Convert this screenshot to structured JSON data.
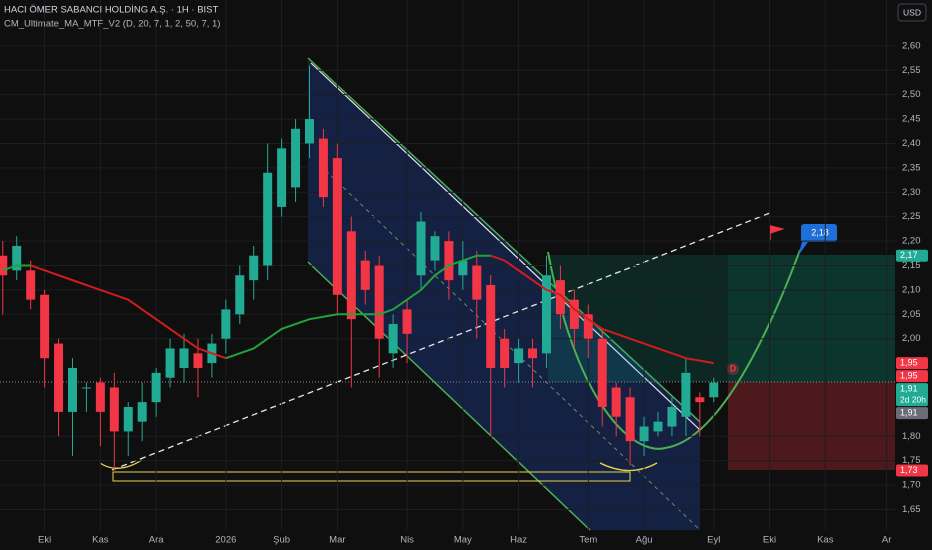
{
  "chart_data": {
    "type": "candlestick",
    "title": "HACI ÖMER SABANCI HOLDİNG A.Ş. · 1H · BIST",
    "indicator": "CM_Ultimate_MA_MTF_V2 (D, 20, 7, 1, 2, 50, 7, 1)",
    "currency": "USD",
    "up_color": "#22ab94",
    "down_color": "#f23645",
    "x": [
      0,
      1,
      2,
      3,
      4,
      5,
      6,
      7,
      8,
      9,
      10,
      11,
      12,
      13,
      14,
      15,
      16,
      17,
      18,
      19,
      20,
      21,
      22,
      23,
      24,
      25,
      26,
      27,
      28,
      29,
      30,
      31,
      32,
      33,
      34,
      35,
      36,
      37,
      38,
      39,
      40,
      41,
      42,
      43,
      44,
      45,
      46,
      47,
      48,
      49,
      50,
      51
    ],
    "open": [
      2.17,
      2.14,
      2.14,
      2.09,
      1.99,
      1.85,
      1.9,
      1.91,
      1.9,
      1.81,
      1.83,
      1.87,
      1.92,
      1.94,
      1.97,
      1.95,
      2.0,
      2.05,
      2.12,
      2.15,
      2.27,
      2.31,
      2.4,
      2.41,
      2.37,
      2.22,
      2.16,
      2.15,
      1.97,
      2.06,
      2.13,
      2.16,
      2.2,
      2.13,
      2.15,
      2.11,
      2.0,
      1.95,
      1.98,
      1.97,
      2.12,
      2.08,
      2.05,
      2.0,
      1.9,
      1.88,
      1.79,
      1.81,
      1.82,
      1.84,
      1.88,
      1.88
    ],
    "high": [
      2.2,
      2.21,
      2.16,
      2.1,
      2.0,
      1.96,
      1.91,
      1.92,
      1.93,
      1.87,
      1.91,
      1.94,
      2.0,
      2.01,
      2.0,
      2.01,
      2.08,
      2.15,
      2.19,
      2.4,
      2.41,
      2.45,
      2.56,
      2.43,
      2.4,
      2.25,
      2.18,
      2.17,
      2.05,
      2.08,
      2.26,
      2.22,
      2.22,
      2.2,
      2.18,
      2.13,
      2.02,
      2.0,
      2.0,
      2.17,
      2.15,
      2.1,
      2.07,
      2.02,
      1.91,
      1.9,
      1.84,
      1.85,
      1.88,
      1.96,
      1.89,
      1.92
    ],
    "low": [
      2.05,
      2.12,
      2.06,
      1.9,
      1.8,
      1.76,
      1.85,
      1.78,
      1.73,
      1.76,
      1.79,
      1.84,
      1.9,
      1.91,
      1.88,
      1.92,
      1.97,
      2.03,
      2.08,
      2.12,
      2.25,
      2.28,
      2.37,
      2.27,
      2.05,
      1.9,
      2.07,
      1.92,
      1.94,
      1.95,
      2.1,
      2.14,
      2.08,
      2.1,
      2.0,
      1.8,
      1.9,
      1.91,
      1.9,
      1.94,
      2.02,
      1.98,
      1.96,
      1.82,
      1.8,
      1.74,
      1.76,
      1.8,
      1.8,
      1.8,
      1.8,
      1.87
    ],
    "close": [
      2.13,
      2.19,
      2.08,
      1.96,
      1.85,
      1.94,
      1.9,
      1.85,
      1.81,
      1.86,
      1.87,
      1.93,
      1.98,
      1.98,
      1.94,
      1.99,
      2.06,
      2.13,
      2.17,
      2.34,
      2.39,
      2.43,
      2.45,
      2.29,
      2.09,
      2.04,
      2.1,
      2.0,
      2.03,
      2.01,
      2.24,
      2.21,
      2.12,
      2.16,
      2.08,
      1.94,
      1.94,
      1.98,
      1.96,
      2.13,
      2.05,
      2.02,
      2.0,
      1.86,
      1.84,
      1.79,
      1.82,
      1.83,
      1.86,
      1.93,
      1.87,
      1.91
    ],
    "ma": [
      2.14,
      2.15,
      2.15,
      2.14,
      2.13,
      2.12,
      2.11,
      2.1,
      2.09,
      2.08,
      2.06,
      2.04,
      2.02,
      2.0,
      1.98,
      1.97,
      1.96,
      1.97,
      1.98,
      2.0,
      2.02,
      2.03,
      2.04,
      2.045,
      2.05,
      2.05,
      2.05,
      2.05,
      2.06,
      2.08,
      2.1,
      2.13,
      2.15,
      2.16,
      2.17,
      2.17,
      2.16,
      2.14,
      2.12,
      2.1,
      2.09,
      2.06,
      2.04,
      2.02,
      2.01,
      2.0,
      1.99,
      1.98,
      1.97,
      1.96,
      1.955,
      1.95
    ],
    "ma_up_color": "#22a33a",
    "ma_down_color": "#d01c1c",
    "xlim": [
      -0.2,
      64
    ],
    "xticks": [
      {
        "value": 3,
        "label": "Eki"
      },
      {
        "value": 7,
        "label": "Kas"
      },
      {
        "value": 11,
        "label": "Ara"
      },
      {
        "value": 16,
        "label": "2026"
      },
      {
        "value": 20,
        "label": "Şub"
      },
      {
        "value": 24,
        "label": "Mar"
      },
      {
        "value": 29,
        "label": "Nis"
      },
      {
        "value": 33,
        "label": "May"
      },
      {
        "value": 37,
        "label": "Haz"
      },
      {
        "value": 42,
        "label": "Tem"
      },
      {
        "value": 46,
        "label": "Ağu"
      },
      {
        "value": 51,
        "label": "Eyl"
      },
      {
        "value": 55,
        "label": "Eki"
      },
      {
        "value": 59,
        "label": "Kas"
      },
      {
        "value": 63.4,
        "label": "Ar"
      }
    ],
    "ylim": [
      1.608,
      2.694
    ],
    "yticks": [
      {
        "value": 2.6,
        "label": "2,60"
      },
      {
        "value": 2.55,
        "label": "2,55"
      },
      {
        "value": 2.5,
        "label": "2,50"
      },
      {
        "value": 2.45,
        "label": "2,45"
      },
      {
        "value": 2.4,
        "label": "2,40"
      },
      {
        "value": 2.35,
        "label": "2,35"
      },
      {
        "value": 2.3,
        "label": "2,30"
      },
      {
        "value": 2.25,
        "label": "2,25"
      },
      {
        "value": 2.2,
        "label": "2,20"
      },
      {
        "value": 2.15,
        "label": "2,15"
      },
      {
        "value": 2.1,
        "label": "2,10"
      },
      {
        "value": 2.05,
        "label": "2,05"
      },
      {
        "value": 2.0,
        "label": "2,00"
      },
      {
        "value": 1.8,
        "label": "1,80"
      },
      {
        "value": 1.75,
        "label": "1,75"
      },
      {
        "value": 1.7,
        "label": "1,70"
      },
      {
        "value": 1.65,
        "label": "1,65"
      }
    ],
    "badges": [
      {
        "value": 2.17,
        "label": "2,17",
        "color": "#22ab94"
      },
      {
        "value": 1.95,
        "label": "1,95",
        "color": "#f23645"
      },
      {
        "value": 1.95,
        "label": "1,95",
        "color": "#f23645"
      },
      {
        "value": 1.91,
        "label": "1,91",
        "color": "#22ab94"
      },
      {
        "value": 1.91,
        "label": "1,91",
        "color": "#6a6d78"
      },
      {
        "value": 1.73,
        "label": "1,73",
        "color": "#f23645"
      }
    ],
    "countdown": "2d 20h",
    "target_label": "2,18",
    "ma_marker": "D"
  }
}
